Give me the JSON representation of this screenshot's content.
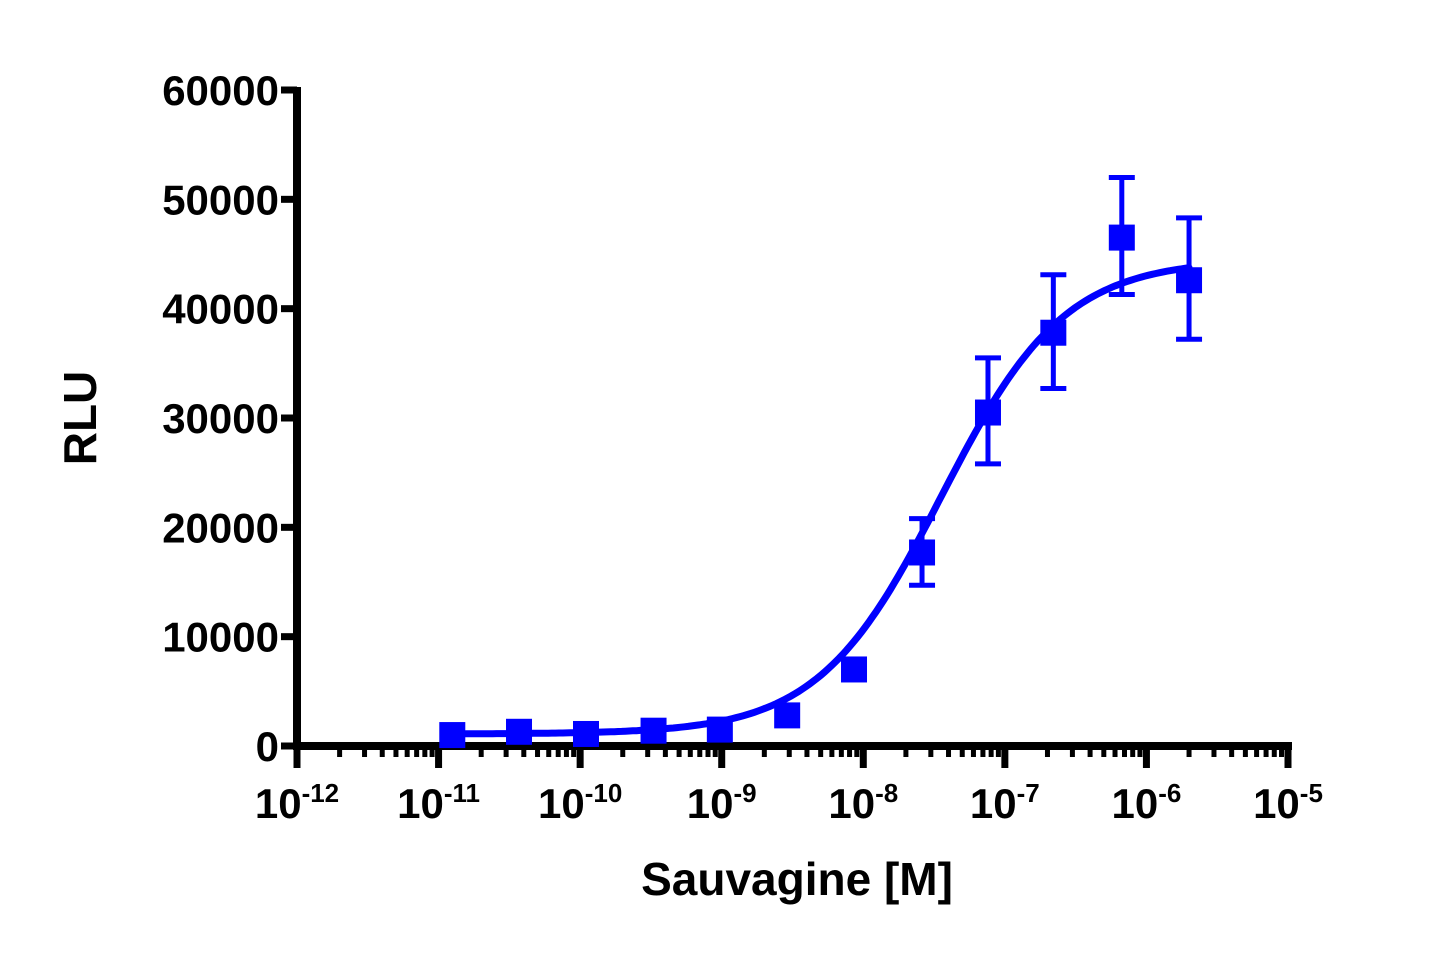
{
  "chart_data": {
    "type": "scatter",
    "title": "",
    "xlabel": "Sauvagine [M]",
    "ylabel": "RLU",
    "xscale": "log",
    "xlim": [
      1e-12,
      1e-05
    ],
    "ylim": [
      0,
      60000
    ],
    "x_ticks": [
      {
        "base": "10",
        "exp": "-12"
      },
      {
        "base": "10",
        "exp": "-11"
      },
      {
        "base": "10",
        "exp": "-10"
      },
      {
        "base": "10",
        "exp": "-9"
      },
      {
        "base": "10",
        "exp": "-8"
      },
      {
        "base": "10",
        "exp": "-7"
      },
      {
        "base": "10",
        "exp": "-6"
      },
      {
        "base": "10",
        "exp": "-5"
      }
    ],
    "y_ticks": [
      0,
      10000,
      20000,
      30000,
      40000,
      50000,
      60000
    ],
    "y_tick_labels": [
      "0",
      "10000",
      "20000",
      "30000",
      "40000",
      "50000",
      "60000"
    ],
    "grid": false,
    "legend": null,
    "color": "#0000ff",
    "series": [
      {
        "name": "Sauvagine",
        "marker": "square",
        "fit": "sigmoidal dose-response",
        "points": [
          {
            "x": 1.25e-11,
            "y": 1000,
            "err_low": 1000,
            "err_high": 1000
          },
          {
            "x": 3.7e-11,
            "y": 1300,
            "err_low": 1300,
            "err_high": 1300
          },
          {
            "x": 1.1e-10,
            "y": 1100,
            "err_low": 1100,
            "err_high": 1100
          },
          {
            "x": 3.3e-10,
            "y": 1400,
            "err_low": 1400,
            "err_high": 1400
          },
          {
            "x": 9.7e-10,
            "y": 1500,
            "err_low": 1500,
            "err_high": 1500
          },
          {
            "x": 2.9e-09,
            "y": 2800,
            "err_low": 2800,
            "err_high": 2800
          },
          {
            "x": 8.6e-09,
            "y": 7000,
            "err_low": 7000,
            "err_high": 7000
          },
          {
            "x": 2.6e-08,
            "y": 17700,
            "err_low": 14700,
            "err_high": 20800
          },
          {
            "x": 7.6e-08,
            "y": 30500,
            "err_low": 25800,
            "err_high": 35500
          },
          {
            "x": 2.2e-07,
            "y": 37800,
            "err_low": 32700,
            "err_high": 43100
          },
          {
            "x": 6.7e-07,
            "y": 46500,
            "err_low": 41300,
            "err_high": 52000
          },
          {
            "x": 2e-06,
            "y": 42600,
            "err_low": 37200,
            "err_high": 48300
          }
        ],
        "fit_params": {
          "bottom": 1100,
          "top": 44500,
          "logEC50": -7.45,
          "hill": 1.0
        }
      }
    ]
  }
}
